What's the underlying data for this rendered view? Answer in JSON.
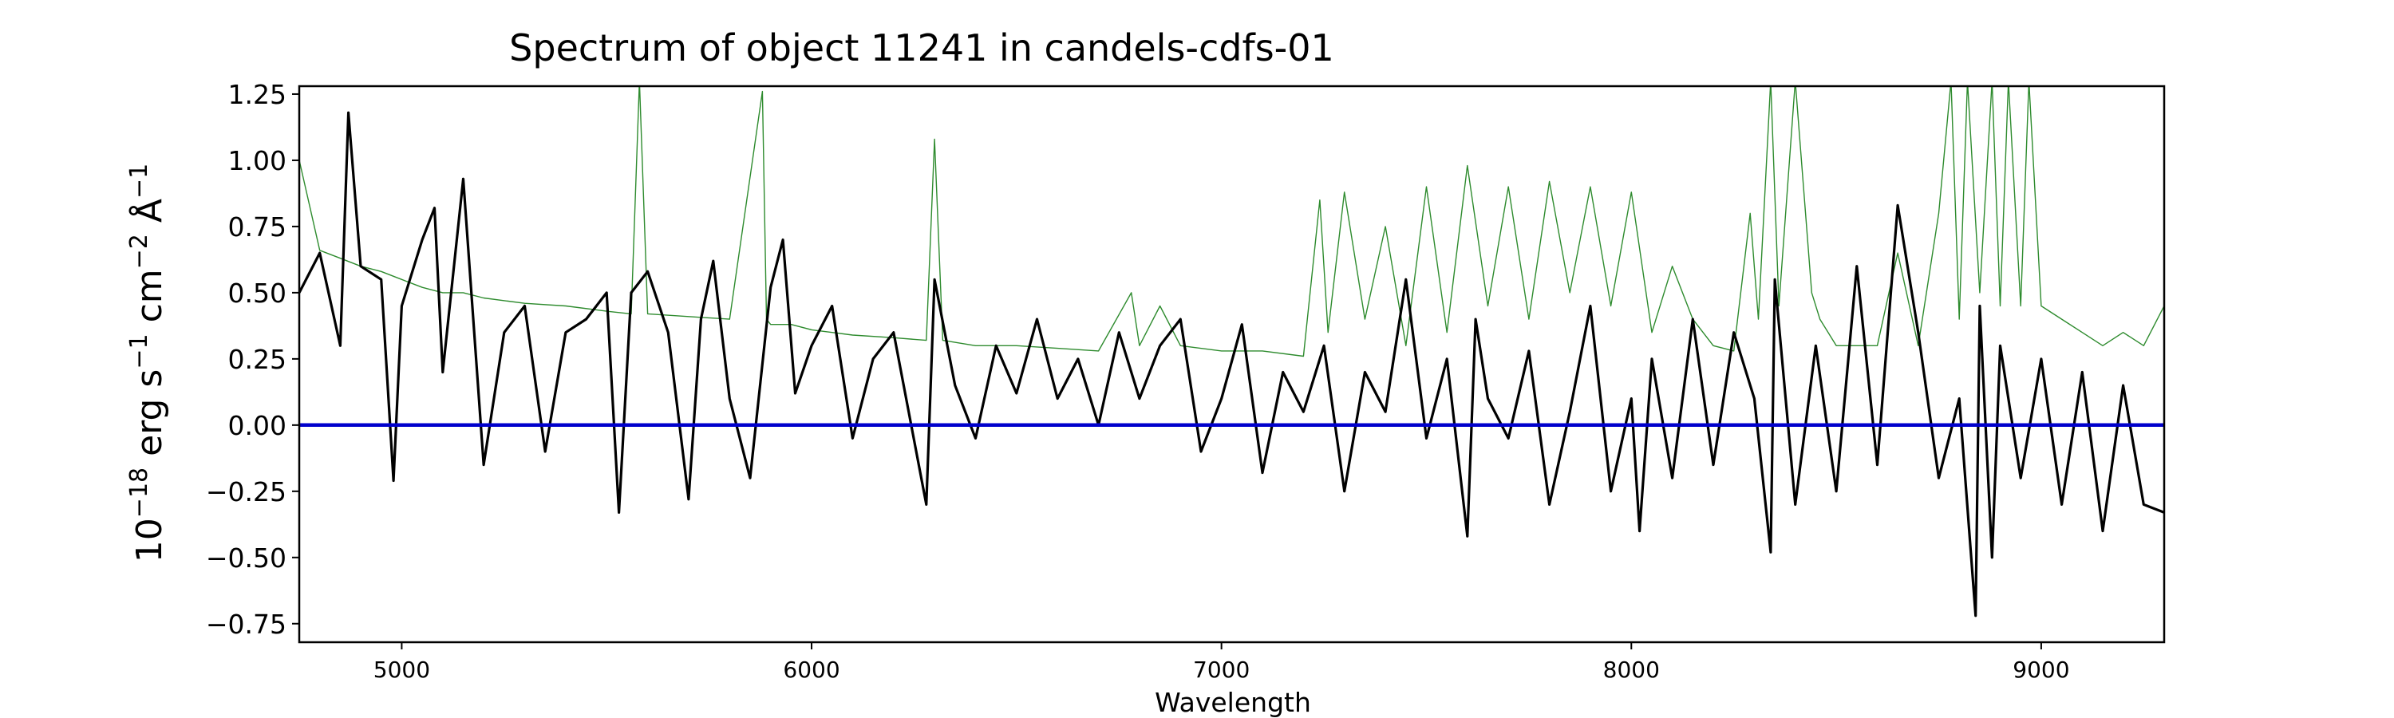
{
  "chart_data": {
    "type": "line",
    "title": "Spectrum of object 11241 in candels-cdfs-01",
    "xlabel": "Wavelength",
    "ylabel": {
      "base": "10",
      "exp1": "−18",
      "erg": " erg s",
      "exp2": "−1",
      "cm": " cm",
      "exp3": "−2",
      "ang": " Å",
      "exp4": "−1"
    },
    "xlim": [
      4750,
      9300
    ],
    "ylim": [
      -0.82,
      1.28
    ],
    "x_ticks": [
      5000,
      6000,
      7000,
      8000,
      9000
    ],
    "y_ticks": [
      1.25,
      1.0,
      0.75,
      0.5,
      0.25,
      0.0,
      -0.25,
      -0.5,
      -0.75
    ],
    "x_tick_labels": [
      "5000",
      "6000",
      "7000",
      "8000",
      "9000"
    ],
    "y_tick_labels": [
      "1.25",
      "1.00",
      "0.75",
      "0.50",
      "0.25",
      "0.00",
      "−0.25",
      "−0.50",
      "−0.75"
    ],
    "grid": false,
    "series": [
      {
        "role": "flux",
        "color": "#000000",
        "x": [
          4750,
          4800,
          4850,
          4870,
          4900,
          4950,
          4980,
          5000,
          5050,
          5080,
          5100,
          5150,
          5200,
          5250,
          5300,
          5350,
          5400,
          5450,
          5500,
          5530,
          5560,
          5600,
          5650,
          5700,
          5730,
          5760,
          5800,
          5850,
          5900,
          5930,
          5960,
          6000,
          6050,
          6100,
          6150,
          6200,
          6280,
          6300,
          6350,
          6400,
          6450,
          6500,
          6550,
          6600,
          6650,
          6700,
          6750,
          6800,
          6850,
          6900,
          6950,
          7000,
          7050,
          7100,
          7150,
          7200,
          7250,
          7300,
          7350,
          7400,
          7450,
          7500,
          7550,
          7600,
          7620,
          7650,
          7700,
          7750,
          7800,
          7850,
          7900,
          7950,
          8000,
          8020,
          8050,
          8100,
          8150,
          8200,
          8250,
          8300,
          8340,
          8350,
          8400,
          8450,
          8500,
          8550,
          8600,
          8650,
          8700,
          8750,
          8800,
          8840,
          8850,
          8880,
          8900,
          8950,
          9000,
          9050,
          9100,
          9150,
          9200,
          9250,
          9300
        ],
        "values": [
          0.5,
          0.65,
          0.3,
          1.18,
          0.6,
          0.55,
          -0.21,
          0.45,
          0.7,
          0.82,
          0.2,
          0.93,
          -0.15,
          0.35,
          0.45,
          -0.1,
          0.35,
          0.4,
          0.5,
          -0.33,
          0.5,
          0.58,
          0.35,
          -0.28,
          0.4,
          0.62,
          0.1,
          -0.2,
          0.52,
          0.7,
          0.12,
          0.3,
          0.45,
          -0.05,
          0.25,
          0.35,
          -0.3,
          0.55,
          0.15,
          -0.05,
          0.3,
          0.12,
          0.4,
          0.1,
          0.25,
          0.0,
          0.35,
          0.1,
          0.3,
          0.4,
          -0.1,
          0.1,
          0.38,
          -0.18,
          0.2,
          0.05,
          0.3,
          -0.25,
          0.2,
          0.05,
          0.55,
          -0.05,
          0.25,
          -0.42,
          0.4,
          0.1,
          -0.05,
          0.28,
          -0.3,
          0.05,
          0.45,
          -0.25,
          0.1,
          -0.4,
          0.25,
          -0.2,
          0.4,
          -0.15,
          0.35,
          0.1,
          -0.48,
          0.55,
          -0.3,
          0.3,
          -0.25,
          0.6,
          -0.15,
          0.83,
          0.35,
          -0.2,
          0.1,
          -0.72,
          0.45,
          -0.5,
          0.3,
          -0.2,
          0.25,
          -0.3,
          0.2,
          -0.4,
          0.15,
          -0.3,
          -0.33
        ]
      },
      {
        "role": "error",
        "color": "#2e8b2e",
        "x": [
          4750,
          4800,
          4850,
          4900,
          4950,
          5000,
          5050,
          5100,
          5150,
          5200,
          5300,
          5400,
          5500,
          5560,
          5580,
          5600,
          5700,
          5800,
          5880,
          5890,
          5900,
          5950,
          6000,
          6050,
          6100,
          6200,
          6280,
          6300,
          6320,
          6400,
          6500,
          6600,
          6700,
          6780,
          6800,
          6850,
          6900,
          7000,
          7100,
          7200,
          7240,
          7260,
          7300,
          7350,
          7400,
          7450,
          7500,
          7550,
          7600,
          7650,
          7700,
          7750,
          7800,
          7850,
          7900,
          7950,
          8000,
          8050,
          8100,
          8150,
          8200,
          8250,
          8290,
          8310,
          8340,
          8360,
          8400,
          8440,
          8460,
          8500,
          8600,
          8650,
          8700,
          8750,
          8780,
          8800,
          8820,
          8850,
          8880,
          8900,
          8920,
          8950,
          8970,
          9000,
          9050,
          9100,
          9150,
          9200,
          9250,
          9300
        ],
        "values": [
          1.0,
          0.66,
          0.63,
          0.6,
          0.58,
          0.55,
          0.52,
          0.5,
          0.5,
          0.48,
          0.46,
          0.45,
          0.43,
          0.42,
          1.3,
          0.42,
          0.41,
          0.4,
          1.26,
          0.4,
          0.38,
          0.38,
          0.36,
          0.35,
          0.34,
          0.33,
          0.32,
          1.08,
          0.32,
          0.3,
          0.3,
          0.29,
          0.28,
          0.5,
          0.3,
          0.45,
          0.3,
          0.28,
          0.28,
          0.26,
          0.85,
          0.35,
          0.88,
          0.4,
          0.75,
          0.3,
          0.9,
          0.35,
          0.98,
          0.45,
          0.9,
          0.4,
          0.92,
          0.5,
          0.9,
          0.45,
          0.88,
          0.35,
          0.6,
          0.4,
          0.3,
          0.28,
          0.8,
          0.4,
          1.3,
          0.45,
          1.3,
          0.5,
          0.4,
          0.3,
          0.3,
          0.65,
          0.3,
          0.8,
          1.3,
          0.4,
          1.3,
          0.5,
          1.3,
          0.45,
          1.3,
          0.45,
          1.3,
          0.45,
          0.4,
          0.35,
          0.3,
          0.35,
          0.3,
          0.45
        ]
      },
      {
        "role": "zero",
        "color": "#0000cc",
        "x": [
          4750,
          9300
        ],
        "values": [
          0.0,
          0.0
        ]
      }
    ]
  }
}
